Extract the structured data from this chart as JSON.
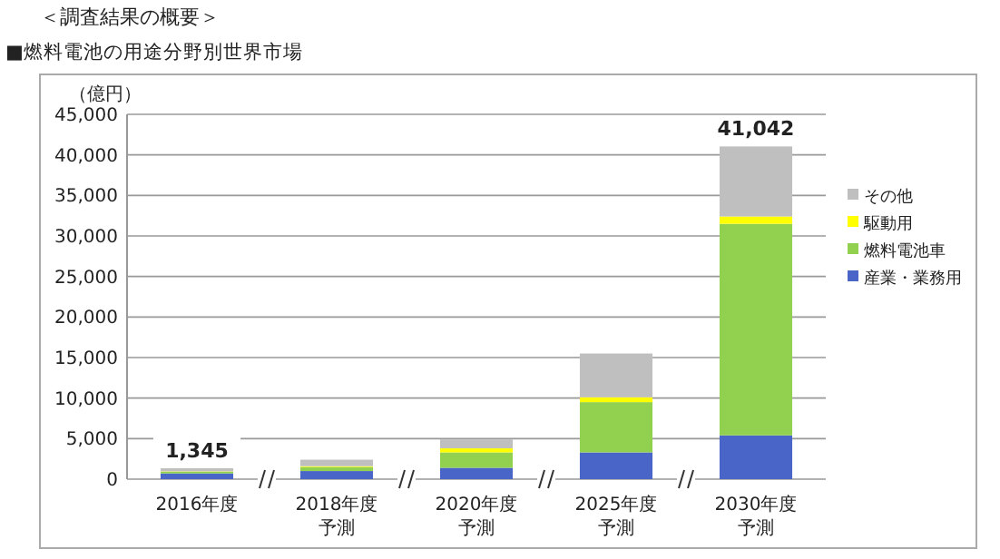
{
  "chart_data": {
    "type": "bar",
    "title": "＜調査結果の概要＞",
    "subtitle": "■燃料電池の用途分野別世界市場",
    "ylabel": "（億円）",
    "categories": [
      "2016年度",
      "2018年度予測",
      "2020年度予測",
      "2025年度予測",
      "2030年度予測"
    ],
    "stacked": true,
    "series": [
      {
        "name": "産業・業務用",
        "color": "#4a65c8",
        "values": [
          700,
          1000,
          1400,
          3300,
          5400
        ]
      },
      {
        "name": "燃料電池車",
        "color": "#92d050",
        "values": [
          200,
          500,
          1900,
          6200,
          26100
        ]
      },
      {
        "name": "駆動用",
        "color": "#ffff00",
        "values": [
          50,
          100,
          500,
          600,
          900
        ]
      },
      {
        "name": "その他",
        "color": "#bfbfbf",
        "values": [
          395,
          800,
          1100,
          5400,
          8642
        ]
      }
    ],
    "totals": [
      "1,345",
      null,
      null,
      null,
      "41,042"
    ],
    "ylim": [
      0,
      45000
    ],
    "yticks": [
      {
        "value": 0,
        "label": "0"
      },
      {
        "value": 5000,
        "label": "5,000"
      },
      {
        "value": 10000,
        "label": "10,000"
      },
      {
        "value": 15000,
        "label": "15,000"
      },
      {
        "value": 20000,
        "label": "20,000"
      },
      {
        "value": 25000,
        "label": "25,000"
      },
      {
        "value": 30000,
        "label": "30,000"
      },
      {
        "value": 35000,
        "label": "35,000"
      },
      {
        "value": 40000,
        "label": "40,000"
      },
      {
        "value": 45000,
        "label": "45,000"
      }
    ],
    "grid": "y",
    "legend": "right"
  }
}
